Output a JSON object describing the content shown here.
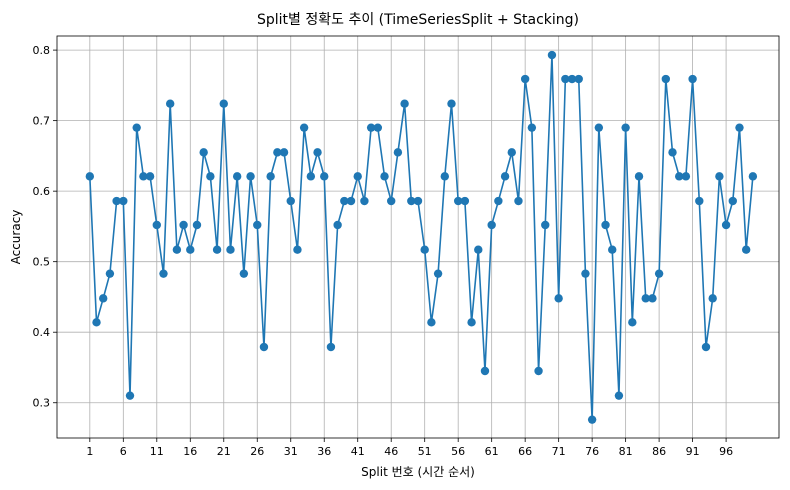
{
  "chart_data": {
    "type": "line",
    "title": "Split별 정확도 추이 (TimeSeriesSplit + Stacking)",
    "xlabel": "Split 번호 (시간 순서)",
    "ylabel": "Accuracy",
    "xlim": [
      -3.9,
      103.9
    ],
    "ylim": [
      0.25,
      0.82
    ],
    "xticks": [
      1,
      6,
      11,
      16,
      21,
      26,
      31,
      36,
      41,
      46,
      51,
      56,
      61,
      66,
      71,
      76,
      81,
      86,
      91,
      96
    ],
    "yticks": [
      0.3,
      0.4,
      0.5,
      0.6,
      0.7,
      0.8
    ],
    "grid": true,
    "marker": "circle",
    "line_color": "#1f77b4",
    "series": [
      {
        "x": [
          1,
          2,
          3,
          4,
          5,
          6,
          7,
          8,
          9,
          10,
          11,
          12,
          13,
          14,
          15,
          16,
          17,
          18,
          19,
          20,
          21,
          22,
          23,
          24,
          25,
          26,
          27,
          28,
          29,
          30,
          31,
          32,
          33,
          34,
          35,
          36,
          37,
          38,
          39,
          40,
          41,
          42,
          43,
          44,
          45,
          46,
          47,
          48,
          49,
          50,
          51,
          52,
          53,
          54,
          55,
          56,
          57,
          58,
          59,
          60,
          61,
          62,
          63,
          64,
          65,
          66,
          67,
          68,
          69,
          70,
          71,
          72,
          73,
          74,
          75,
          76,
          77,
          78,
          79,
          80,
          81,
          82,
          83,
          84,
          85,
          86,
          87,
          88,
          89,
          90,
          91,
          92,
          93,
          94,
          95,
          96,
          97,
          98,
          99,
          100
        ],
        "values": [
          0.621,
          0.414,
          0.448,
          0.483,
          0.586,
          0.586,
          0.31,
          0.69,
          0.621,
          0.621,
          0.552,
          0.483,
          0.724,
          0.517,
          0.552,
          0.517,
          0.552,
          0.655,
          0.621,
          0.517,
          0.724,
          0.517,
          0.621,
          0.483,
          0.621,
          0.552,
          0.379,
          0.621,
          0.655,
          0.655,
          0.586,
          0.517,
          0.69,
          0.621,
          0.655,
          0.621,
          0.379,
          0.552,
          0.586,
          0.586,
          0.621,
          0.586,
          0.69,
          0.69,
          0.621,
          0.586,
          0.655,
          0.724,
          0.586,
          0.586,
          0.517,
          0.414,
          0.483,
          0.621,
          0.724,
          0.586,
          0.586,
          0.414,
          0.517,
          0.345,
          0.552,
          0.586,
          0.621,
          0.655,
          0.586,
          0.759,
          0.69,
          0.345,
          0.552,
          0.793,
          0.448,
          0.759,
          0.759,
          0.759,
          0.483,
          0.276,
          0.69,
          0.552,
          0.517,
          0.31,
          0.69,
          0.414,
          0.621,
          0.448,
          0.448,
          0.483,
          0.759,
          0.655,
          0.621,
          0.621,
          0.759,
          0.586,
          0.379,
          0.448,
          0.621,
          0.552,
          0.586,
          0.69,
          0.517,
          0.621
        ]
      }
    ]
  }
}
